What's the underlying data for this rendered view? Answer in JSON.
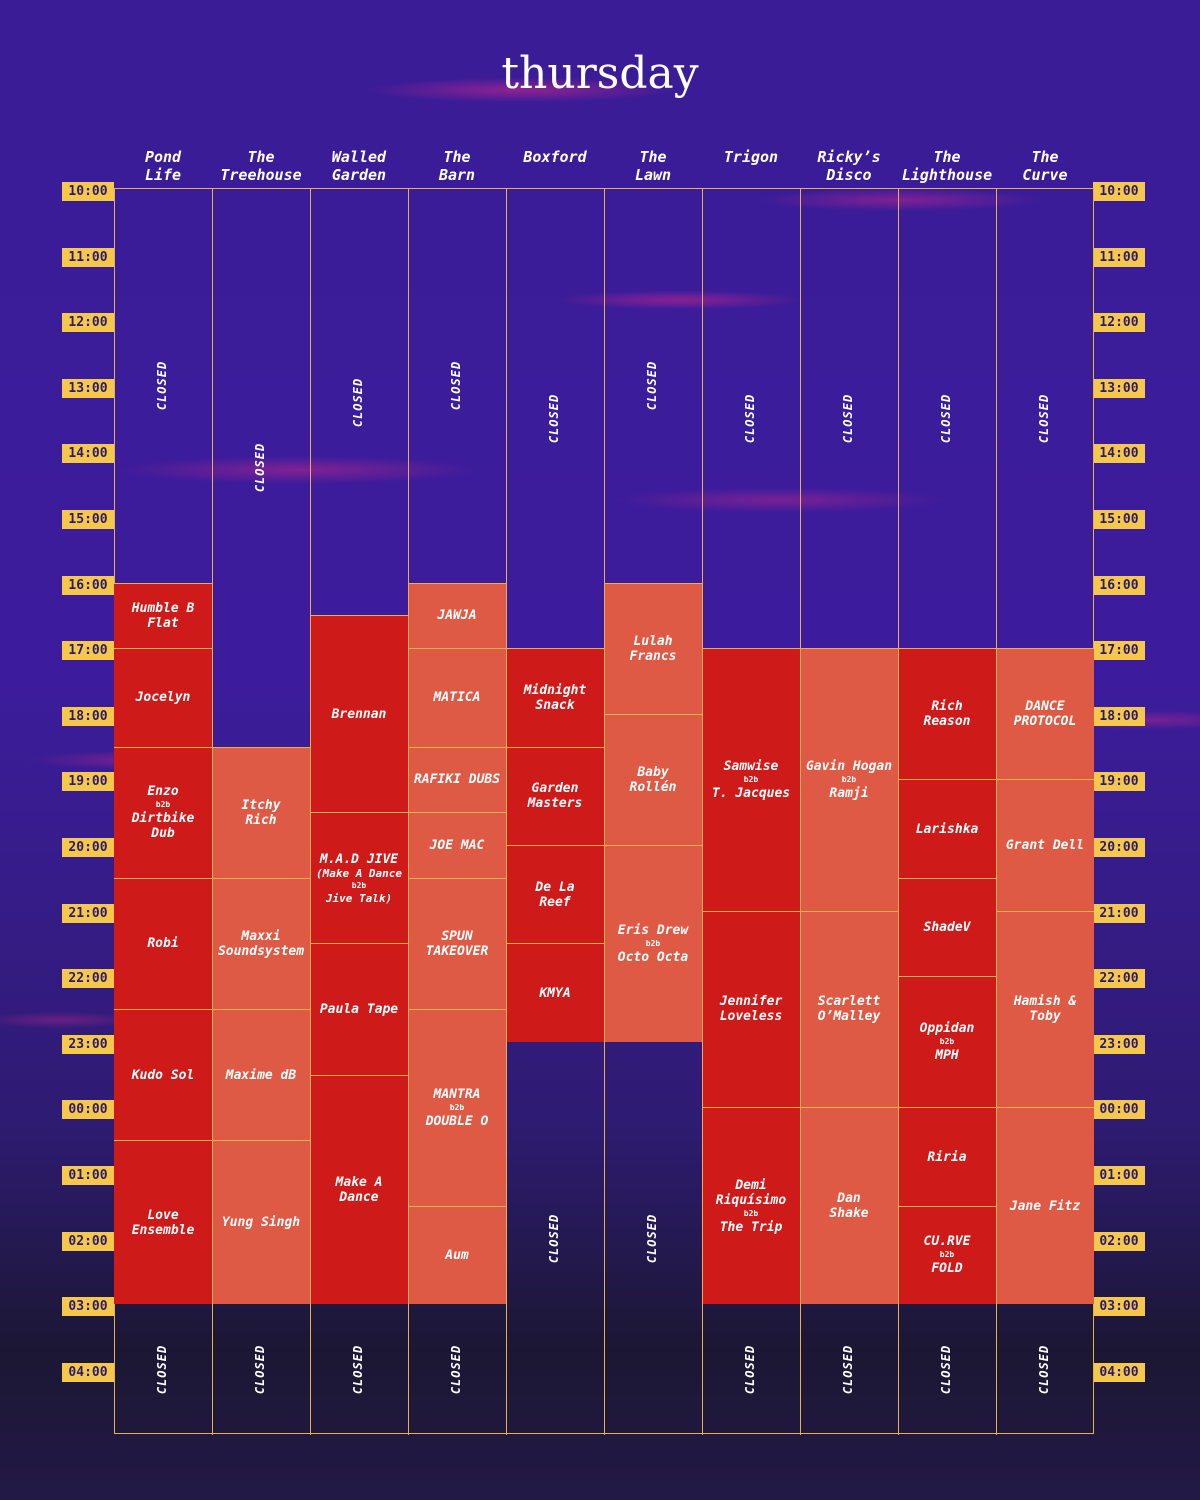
{
  "title": "thursday",
  "times": [
    "10:00",
    "11:00",
    "12:00",
    "13:00",
    "14:00",
    "15:00",
    "16:00",
    "17:00",
    "18:00",
    "19:00",
    "20:00",
    "21:00",
    "22:00",
    "23:00",
    "00:00",
    "01:00",
    "02:00",
    "03:00",
    "04:00"
  ],
  "stages": [
    {
      "name": "Pond\nLife",
      "slots": [
        {
          "kind": "closed",
          "start": 0,
          "end": 6
        },
        {
          "kind": "red",
          "start": 6,
          "end": 7,
          "lines": [
            "Humble B\nFlat"
          ]
        },
        {
          "kind": "red",
          "start": 7,
          "end": 8.5,
          "lines": [
            "Jocelyn"
          ]
        },
        {
          "kind": "red",
          "start": 8.5,
          "end": 10.5,
          "lines": [
            "Enzo",
            "b2b",
            "Dirtbike\nDub"
          ]
        },
        {
          "kind": "red",
          "start": 10.5,
          "end": 12.5,
          "lines": [
            "Robi"
          ]
        },
        {
          "kind": "red",
          "start": 12.5,
          "end": 14.5,
          "lines": [
            "Kudo Sol"
          ]
        },
        {
          "kind": "red",
          "start": 14.5,
          "end": 17,
          "lines": [
            "Love\nEnsemble"
          ]
        },
        {
          "kind": "closed",
          "start": 17,
          "end": 19
        }
      ]
    },
    {
      "name": "The\nTreehouse",
      "slots": [
        {
          "kind": "closed",
          "start": 0,
          "end": 8.5
        },
        {
          "kind": "orange",
          "start": 8.5,
          "end": 10.5,
          "lines": [
            "Itchy\nRich"
          ]
        },
        {
          "kind": "orange",
          "start": 10.5,
          "end": 12.5,
          "lines": [
            "Maxxi\nSoundsystem"
          ]
        },
        {
          "kind": "orange",
          "start": 12.5,
          "end": 14.5,
          "lines": [
            "Maxime dB"
          ]
        },
        {
          "kind": "orange",
          "start": 14.5,
          "end": 17,
          "lines": [
            "Yung Singh"
          ]
        },
        {
          "kind": "closed",
          "start": 17,
          "end": 19
        }
      ]
    },
    {
      "name": "Walled\nGarden",
      "slots": [
        {
          "kind": "closed",
          "start": 0,
          "end": 6.5
        },
        {
          "kind": "red",
          "start": 6.5,
          "end": 9.5,
          "lines": [
            "Brennan"
          ]
        },
        {
          "kind": "red",
          "start": 9.5,
          "end": 11.5,
          "lines": [
            "M.A.D JIVE",
            "(Make A Dance",
            "b2b",
            "Jive Talk)"
          ]
        },
        {
          "kind": "red",
          "start": 11.5,
          "end": 13.5,
          "lines": [
            "Paula Tape"
          ]
        },
        {
          "kind": "red",
          "start": 13.5,
          "end": 17,
          "lines": [
            "Make A\nDance"
          ]
        },
        {
          "kind": "closed",
          "start": 17,
          "end": 19
        }
      ]
    },
    {
      "name": "The\nBarn",
      "slots": [
        {
          "kind": "closed",
          "start": 0,
          "end": 6
        },
        {
          "kind": "orange",
          "start": 6,
          "end": 7,
          "lines": [
            "JAWJA"
          ]
        },
        {
          "kind": "orange",
          "start": 7,
          "end": 8.5,
          "lines": [
            "MATICA"
          ]
        },
        {
          "kind": "orange",
          "start": 8.5,
          "end": 9.5,
          "lines": [
            "RAFIKI DUBS"
          ]
        },
        {
          "kind": "orange",
          "start": 9.5,
          "end": 10.5,
          "lines": [
            "JOE MAC"
          ]
        },
        {
          "kind": "orange",
          "start": 10.5,
          "end": 12.5,
          "lines": [
            "SPUN\nTAKEOVER"
          ]
        },
        {
          "kind": "orange",
          "start": 12.5,
          "end": 15.5,
          "lines": [
            "MANTRA",
            "b2b",
            "DOUBLE O"
          ]
        },
        {
          "kind": "orange",
          "start": 15.5,
          "end": 17,
          "lines": [
            "Aum"
          ]
        },
        {
          "kind": "closed",
          "start": 17,
          "end": 19
        }
      ]
    },
    {
      "name": "Boxford",
      "slots": [
        {
          "kind": "closed",
          "start": 0,
          "end": 7
        },
        {
          "kind": "red",
          "start": 7,
          "end": 8.5,
          "lines": [
            "Midnight\nSnack"
          ]
        },
        {
          "kind": "red",
          "start": 8.5,
          "end": 10,
          "lines": [
            "Garden\nMasters"
          ]
        },
        {
          "kind": "red",
          "start": 10,
          "end": 11.5,
          "lines": [
            "De La\nReef"
          ]
        },
        {
          "kind": "red",
          "start": 11.5,
          "end": 13,
          "lines": [
            "KMYA"
          ]
        },
        {
          "kind": "closed",
          "start": 13,
          "end": 19
        }
      ]
    },
    {
      "name": "The\nLawn",
      "slots": [
        {
          "kind": "closed",
          "start": 0,
          "end": 6
        },
        {
          "kind": "orange",
          "start": 6,
          "end": 8,
          "lines": [
            "Lulah\nFrancs"
          ]
        },
        {
          "kind": "orange",
          "start": 8,
          "end": 10,
          "lines": [
            "Baby\nRollén"
          ]
        },
        {
          "kind": "orange",
          "start": 10,
          "end": 13,
          "lines": [
            "Eris Drew",
            "b2b",
            "Octo Octa"
          ]
        },
        {
          "kind": "closed",
          "start": 13,
          "end": 19
        }
      ]
    },
    {
      "name": "Trigon",
      "slots": [
        {
          "kind": "closed",
          "start": 0,
          "end": 7
        },
        {
          "kind": "red",
          "start": 7,
          "end": 11,
          "lines": [
            "Samwise",
            "b2b",
            "T. Jacques"
          ]
        },
        {
          "kind": "red",
          "start": 11,
          "end": 14,
          "lines": [
            "Jennifer\nLoveless"
          ]
        },
        {
          "kind": "red",
          "start": 14,
          "end": 17,
          "lines": [
            "Demi\nRiquísimo",
            "b2b",
            "The Trip"
          ]
        },
        {
          "kind": "closed",
          "start": 17,
          "end": 19
        }
      ]
    },
    {
      "name": "Ricky’s\nDisco",
      "slots": [
        {
          "kind": "closed",
          "start": 0,
          "end": 7
        },
        {
          "kind": "orange",
          "start": 7,
          "end": 11,
          "lines": [
            "Gavin Hogan",
            "b2b",
            "Ramji"
          ]
        },
        {
          "kind": "orange",
          "start": 11,
          "end": 14,
          "lines": [
            "Scarlett\nO’Malley"
          ]
        },
        {
          "kind": "orange",
          "start": 14,
          "end": 17,
          "lines": [
            "Dan\nShake"
          ]
        },
        {
          "kind": "closed",
          "start": 17,
          "end": 19
        }
      ]
    },
    {
      "name": "The\nLighthouse",
      "slots": [
        {
          "kind": "closed",
          "start": 0,
          "end": 7
        },
        {
          "kind": "red",
          "start": 7,
          "end": 9,
          "lines": [
            "Rich\nReason"
          ]
        },
        {
          "kind": "red",
          "start": 9,
          "end": 10.5,
          "lines": [
            "Larishka"
          ]
        },
        {
          "kind": "red",
          "start": 10.5,
          "end": 12,
          "lines": [
            "ShadeV"
          ]
        },
        {
          "kind": "red",
          "start": 12,
          "end": 14,
          "lines": [
            "Oppidan",
            "b2b",
            "MPH"
          ]
        },
        {
          "kind": "red",
          "start": 14,
          "end": 15.5,
          "lines": [
            "Riria"
          ]
        },
        {
          "kind": "red",
          "start": 15.5,
          "end": 17,
          "lines": [
            "CU.RVE",
            "b2b",
            "FOLD"
          ]
        },
        {
          "kind": "closed",
          "start": 17,
          "end": 19
        }
      ]
    },
    {
      "name": "The\nCurve",
      "slots": [
        {
          "kind": "closed",
          "start": 0,
          "end": 7
        },
        {
          "kind": "orange",
          "start": 7,
          "end": 9,
          "lines": [
            "DANCE\nPROTOCOL"
          ]
        },
        {
          "kind": "orange",
          "start": 9,
          "end": 11,
          "lines": [
            "Grant Dell"
          ]
        },
        {
          "kind": "orange",
          "start": 11,
          "end": 14,
          "lines": [
            "Hamish &\nToby"
          ]
        },
        {
          "kind": "orange",
          "start": 14,
          "end": 17,
          "lines": [
            "Jane Fitz"
          ]
        },
        {
          "kind": "closed",
          "start": 17,
          "end": 19
        }
      ]
    }
  ],
  "closed_label": "CLOSED",
  "colors": {
    "accent": "#f5c74a",
    "slot_red": "#cf1a1a",
    "slot_orange": "#df5a45",
    "background": "#3c1c9c"
  }
}
